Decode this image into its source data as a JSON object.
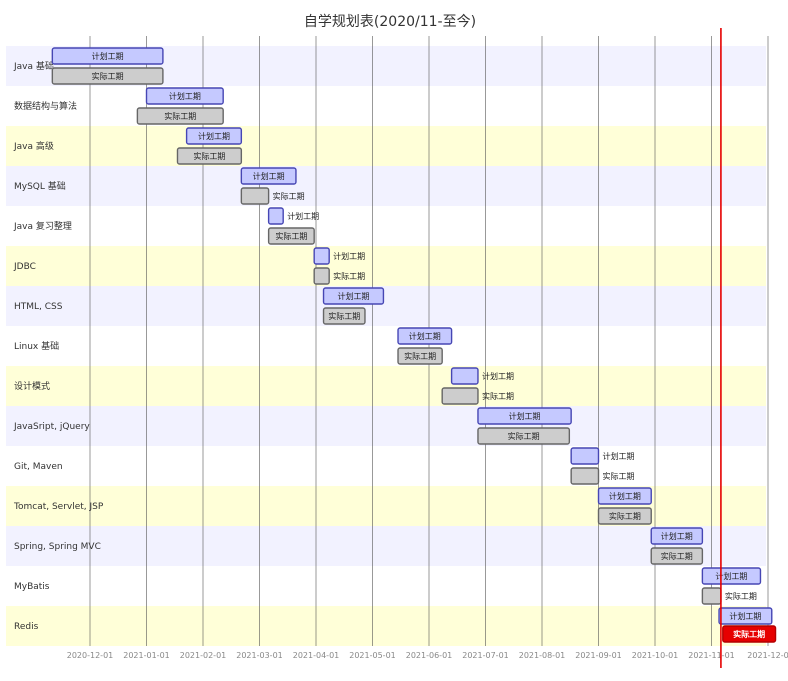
{
  "chart_data": {
    "type": "gantt",
    "title": "自学规划表(2020/11-至今)",
    "x_ticks": [
      "2020-12-01",
      "2021-01-01",
      "2021-02-01",
      "2021-03-01",
      "2021-04-01",
      "2021-05-01",
      "2021-06-01",
      "2021-07-01",
      "2021-08-01",
      "2021-09-01",
      "2021-10-01",
      "2021-11-01",
      "2021-12-0"
    ],
    "xlim": [
      "2020-11-01",
      "2021-12-01"
    ],
    "today": "2021-11-06",
    "series": [
      {
        "name": "计划工期",
        "color": "#c5c9ff",
        "stroke": "#4646b4"
      },
      {
        "name": "实际工期",
        "color": "#cdcdcd",
        "stroke": "#666666"
      }
    ],
    "today_color": "#e60000",
    "row_band_colors": [
      "#f2f2ff",
      "#ffffff",
      "#ffffd8"
    ],
    "tasks": [
      {
        "name": "Java 基础",
        "plan": [
          "2020-11-11",
          "2021-01-10"
        ],
        "actual": [
          "2020-11-11",
          "2021-01-10"
        ]
      },
      {
        "name": "数据结构与算法",
        "plan": [
          "2021-01-01",
          "2021-02-11"
        ],
        "actual": [
          "2020-12-27",
          "2021-02-11"
        ]
      },
      {
        "name": "Java 高级",
        "plan": [
          "2021-01-23",
          "2021-02-20"
        ],
        "actual": [
          "2021-01-18",
          "2021-02-20"
        ]
      },
      {
        "name": "MySQL 基础",
        "plan": [
          "2021-02-20",
          "2021-03-21"
        ],
        "actual": [
          "2021-02-20",
          "2021-03-06"
        ]
      },
      {
        "name": "Java 复习整理",
        "plan": [
          "2021-03-06",
          "2021-03-14"
        ],
        "actual": [
          "2021-03-06",
          "2021-03-31"
        ]
      },
      {
        "name": "JDBC",
        "plan": [
          "2021-03-31",
          "2021-04-08"
        ],
        "actual": [
          "2021-03-31",
          "2021-04-08"
        ]
      },
      {
        "name": "HTML, CSS",
        "plan": [
          "2021-04-05",
          "2021-05-07"
        ],
        "actual": [
          "2021-04-05",
          "2021-04-27"
        ]
      },
      {
        "name": "Linux 基础",
        "plan": [
          "2021-05-15",
          "2021-06-13"
        ],
        "actual": [
          "2021-05-15",
          "2021-06-08"
        ]
      },
      {
        "name": "设计模式",
        "plan": [
          "2021-06-13",
          "2021-06-27"
        ],
        "actual": [
          "2021-06-08",
          "2021-06-27"
        ]
      },
      {
        "name": "JavaSript, jQuery",
        "plan": [
          "2021-06-27",
          "2021-08-17"
        ],
        "actual": [
          "2021-06-27",
          "2021-08-16"
        ]
      },
      {
        "name": "Git, Maven",
        "plan": [
          "2021-08-17",
          "2021-09-01"
        ],
        "actual": [
          "2021-08-17",
          "2021-09-01"
        ]
      },
      {
        "name": "Tomcat, Servlet, JSP",
        "plan": [
          "2021-09-01",
          "2021-09-29"
        ],
        "actual": [
          "2021-09-01",
          "2021-09-29"
        ]
      },
      {
        "name": "Spring, Spring MVC",
        "plan": [
          "2021-09-29",
          "2021-10-27"
        ],
        "actual": [
          "2021-09-29",
          "2021-10-27"
        ]
      },
      {
        "name": "MyBatis",
        "plan": [
          "2021-10-27",
          "2021-11-27"
        ],
        "actual": [
          "2021-10-27",
          "2021-11-06"
        ]
      },
      {
        "name": "Redis",
        "plan": [
          "2021-11-05",
          "2021-12-03"
        ],
        "actual": [
          "2021-11-07",
          "2021-12-05"
        ],
        "actual_is_current": true
      }
    ]
  }
}
